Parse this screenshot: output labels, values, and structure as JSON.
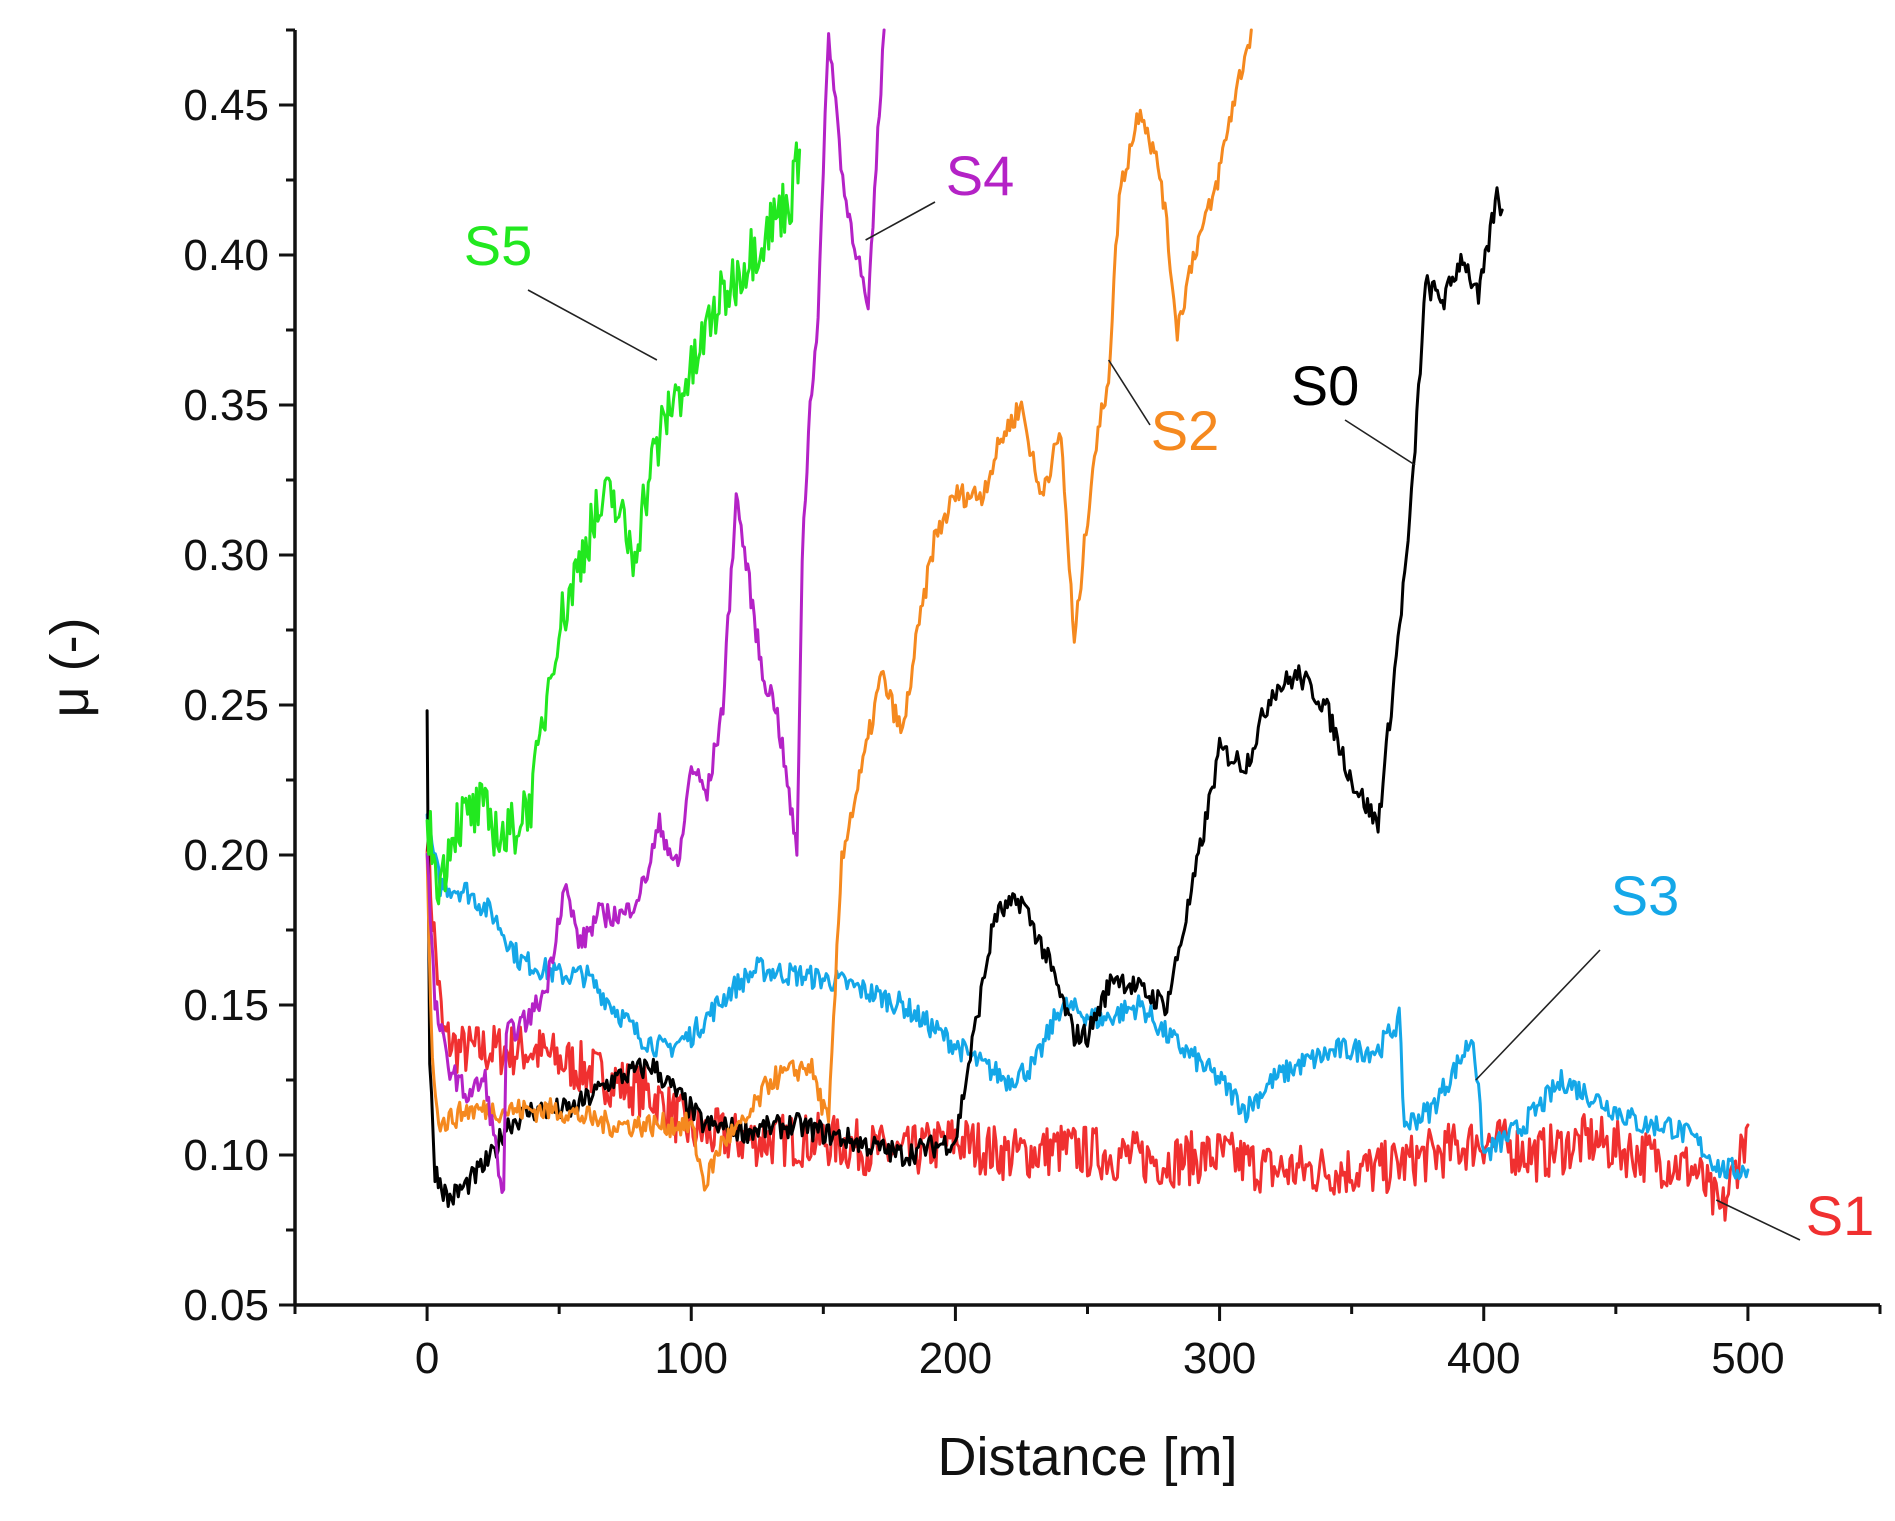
{
  "chart_data": {
    "type": "line",
    "title": "",
    "xlabel": "Distance [m]",
    "ylabel": "μ (-)",
    "xlim": [
      -50,
      550
    ],
    "ylim": [
      0.05,
      0.475
    ],
    "x_ticks": [
      0,
      100,
      200,
      300,
      400,
      500
    ],
    "x_tick_labels": [
      "0",
      "100",
      "200",
      "300",
      "400",
      "500"
    ],
    "y_ticks": [
      0.05,
      0.1,
      0.15,
      0.2,
      0.25,
      0.3,
      0.35,
      0.4,
      0.45
    ],
    "y_tick_labels": [
      "0.05",
      "0.10",
      "0.15",
      "0.20",
      "0.25",
      "0.30",
      "0.35",
      "0.40",
      "0.45"
    ],
    "grid": false,
    "legend": "inline labels with leader lines",
    "series": [
      {
        "name": "S0",
        "label": "S0",
        "color": "#000000",
        "points": [
          [
            0,
            0.25
          ],
          [
            1,
            0.13
          ],
          [
            3,
            0.095
          ],
          [
            8,
            0.085
          ],
          [
            15,
            0.09
          ],
          [
            25,
            0.1
          ],
          [
            30,
            0.11
          ],
          [
            40,
            0.115
          ],
          [
            55,
            0.115
          ],
          [
            70,
            0.125
          ],
          [
            85,
            0.13
          ],
          [
            95,
            0.12
          ],
          [
            105,
            0.11
          ],
          [
            120,
            0.108
          ],
          [
            140,
            0.11
          ],
          [
            160,
            0.105
          ],
          [
            180,
            0.1
          ],
          [
            200,
            0.105
          ],
          [
            205,
            0.13
          ],
          [
            215,
            0.18
          ],
          [
            225,
            0.185
          ],
          [
            235,
            0.165
          ],
          [
            245,
            0.14
          ],
          [
            250,
            0.14
          ],
          [
            260,
            0.16
          ],
          [
            270,
            0.155
          ],
          [
            280,
            0.15
          ],
          [
            290,
            0.19
          ],
          [
            300,
            0.235
          ],
          [
            310,
            0.23
          ],
          [
            320,
            0.255
          ],
          [
            330,
            0.26
          ],
          [
            340,
            0.25
          ],
          [
            350,
            0.225
          ],
          [
            360,
            0.21
          ],
          [
            365,
            0.25
          ],
          [
            372,
            0.31
          ],
          [
            378,
            0.39
          ],
          [
            385,
            0.385
          ],
          [
            392,
            0.4
          ],
          [
            398,
            0.385
          ],
          [
            405,
            0.42
          ],
          [
            407,
            0.415
          ]
        ]
      },
      {
        "name": "S1",
        "label": "S1",
        "color": "#f03030",
        "points": [
          [
            0,
            0.21
          ],
          [
            2,
            0.18
          ],
          [
            6,
            0.14
          ],
          [
            12,
            0.135
          ],
          [
            30,
            0.135
          ],
          [
            40,
            0.135
          ],
          [
            55,
            0.13
          ],
          [
            70,
            0.125
          ],
          [
            85,
            0.12
          ],
          [
            100,
            0.108
          ],
          [
            120,
            0.105
          ],
          [
            150,
            0.105
          ],
          [
            180,
            0.1
          ],
          [
            200,
            0.105
          ],
          [
            220,
            0.1
          ],
          [
            240,
            0.102
          ],
          [
            260,
            0.1
          ],
          [
            280,
            0.098
          ],
          [
            300,
            0.1
          ],
          [
            320,
            0.095
          ],
          [
            340,
            0.095
          ],
          [
            360,
            0.095
          ],
          [
            380,
            0.1
          ],
          [
            400,
            0.105
          ],
          [
            420,
            0.1
          ],
          [
            440,
            0.105
          ],
          [
            460,
            0.1
          ],
          [
            480,
            0.095
          ],
          [
            490,
            0.08
          ],
          [
            500,
            0.11
          ]
        ]
      },
      {
        "name": "S2",
        "label": "S2",
        "color": "#f5891f",
        "points": [
          [
            0,
            0.2
          ],
          [
            2,
            0.13
          ],
          [
            5,
            0.11
          ],
          [
            15,
            0.115
          ],
          [
            30,
            0.115
          ],
          [
            50,
            0.115
          ],
          [
            70,
            0.11
          ],
          [
            90,
            0.11
          ],
          [
            100,
            0.11
          ],
          [
            105,
            0.09
          ],
          [
            112,
            0.105
          ],
          [
            120,
            0.11
          ],
          [
            130,
            0.125
          ],
          [
            145,
            0.13
          ],
          [
            152,
            0.11
          ],
          [
            157,
            0.2
          ],
          [
            165,
            0.23
          ],
          [
            172,
            0.26
          ],
          [
            180,
            0.24
          ],
          [
            185,
            0.27
          ],
          [
            192,
            0.305
          ],
          [
            200,
            0.32
          ],
          [
            210,
            0.32
          ],
          [
            218,
            0.34
          ],
          [
            225,
            0.35
          ],
          [
            232,
            0.32
          ],
          [
            240,
            0.34
          ],
          [
            245,
            0.27
          ],
          [
            252,
            0.33
          ],
          [
            258,
            0.36
          ],
          [
            262,
            0.42
          ],
          [
            270,
            0.45
          ],
          [
            278,
            0.425
          ],
          [
            284,
            0.375
          ],
          [
            290,
            0.4
          ],
          [
            298,
            0.42
          ],
          [
            305,
            0.45
          ],
          [
            312,
            0.475
          ]
        ]
      },
      {
        "name": "S3",
        "label": "S3",
        "color": "#14a7e8",
        "points": [
          [
            0,
            0.21
          ],
          [
            5,
            0.19
          ],
          [
            15,
            0.188
          ],
          [
            25,
            0.18
          ],
          [
            35,
            0.165
          ],
          [
            50,
            0.16
          ],
          [
            60,
            0.16
          ],
          [
            70,
            0.15
          ],
          [
            80,
            0.14
          ],
          [
            90,
            0.135
          ],
          [
            100,
            0.14
          ],
          [
            115,
            0.155
          ],
          [
            125,
            0.162
          ],
          [
            140,
            0.16
          ],
          [
            155,
            0.158
          ],
          [
            165,
            0.155
          ],
          [
            180,
            0.15
          ],
          [
            195,
            0.14
          ],
          [
            210,
            0.13
          ],
          [
            220,
            0.125
          ],
          [
            230,
            0.13
          ],
          [
            240,
            0.15
          ],
          [
            255,
            0.145
          ],
          [
            270,
            0.15
          ],
          [
            280,
            0.14
          ],
          [
            300,
            0.125
          ],
          [
            310,
            0.115
          ],
          [
            320,
            0.125
          ],
          [
            330,
            0.13
          ],
          [
            345,
            0.135
          ],
          [
            360,
            0.135
          ],
          [
            368,
            0.145
          ],
          [
            370,
            0.11
          ],
          [
            380,
            0.115
          ],
          [
            390,
            0.13
          ],
          [
            396,
            0.14
          ],
          [
            400,
            0.1
          ],
          [
            415,
            0.11
          ],
          [
            430,
            0.125
          ],
          [
            440,
            0.12
          ],
          [
            450,
            0.115
          ],
          [
            460,
            0.11
          ],
          [
            470,
            0.11
          ],
          [
            480,
            0.105
          ],
          [
            490,
            0.095
          ],
          [
            500,
            0.095
          ]
        ]
      },
      {
        "name": "S4",
        "label": "S4",
        "color": "#b422c6",
        "points": [
          [
            0,
            0.2
          ],
          [
            3,
            0.15
          ],
          [
            8,
            0.13
          ],
          [
            15,
            0.12
          ],
          [
            22,
            0.125
          ],
          [
            29,
            0.085
          ],
          [
            30,
            0.14
          ],
          [
            38,
            0.145
          ],
          [
            45,
            0.155
          ],
          [
            52,
            0.19
          ],
          [
            58,
            0.17
          ],
          [
            65,
            0.18
          ],
          [
            75,
            0.18
          ],
          [
            82,
            0.19
          ],
          [
            88,
            0.21
          ],
          [
            95,
            0.195
          ],
          [
            100,
            0.23
          ],
          [
            106,
            0.22
          ],
          [
            112,
            0.25
          ],
          [
            117,
            0.32
          ],
          [
            122,
            0.29
          ],
          [
            127,
            0.26
          ],
          [
            132,
            0.25
          ],
          [
            137,
            0.22
          ],
          [
            140,
            0.2
          ],
          [
            142,
            0.3
          ],
          [
            145,
            0.35
          ],
          [
            148,
            0.38
          ],
          [
            152,
            0.475
          ],
          [
            158,
            0.42
          ],
          [
            163,
            0.4
          ],
          [
            167,
            0.38
          ],
          [
            170,
            0.43
          ],
          [
            173,
            0.475
          ]
        ]
      },
      {
        "name": "S5",
        "label": "S5",
        "color": "#22e81f",
        "points": [
          [
            0,
            0.21
          ],
          [
            5,
            0.19
          ],
          [
            10,
            0.21
          ],
          [
            20,
            0.215
          ],
          [
            30,
            0.205
          ],
          [
            40,
            0.22
          ],
          [
            48,
            0.27
          ],
          [
            55,
            0.29
          ],
          [
            62,
            0.31
          ],
          [
            70,
            0.32
          ],
          [
            78,
            0.3
          ],
          [
            85,
            0.33
          ],
          [
            92,
            0.35
          ],
          [
            100,
            0.36
          ],
          [
            108,
            0.38
          ],
          [
            115,
            0.39
          ],
          [
            122,
            0.4
          ],
          [
            130,
            0.41
          ],
          [
            138,
            0.42
          ],
          [
            141,
            0.435
          ]
        ]
      }
    ],
    "annotations": [
      {
        "series": "S0",
        "text": "S0",
        "anchor": [
          374,
          0.33
        ]
      },
      {
        "series": "S1",
        "text": "S1",
        "anchor": [
          488,
          0.085
        ]
      },
      {
        "series": "S2",
        "text": "S2",
        "anchor": [
          258,
          0.365
        ]
      },
      {
        "series": "S3",
        "text": "S3",
        "anchor": [
          397,
          0.125
        ]
      },
      {
        "series": "S4",
        "text": "S4",
        "anchor": [
          166,
          0.405
        ]
      },
      {
        "series": "S5",
        "text": "S5",
        "anchor": [
          87,
          0.365
        ]
      }
    ]
  }
}
